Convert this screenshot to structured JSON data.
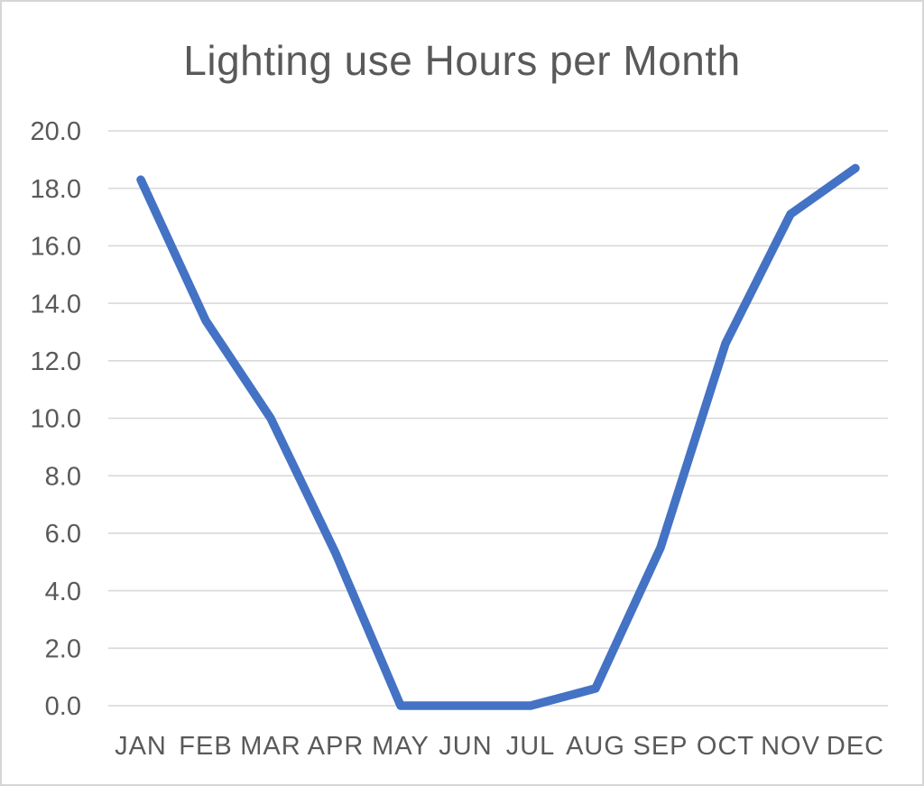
{
  "chart_data": {
    "type": "line",
    "title": "Lighting use Hours per Month",
    "categories": [
      "JAN",
      "FEB",
      "MAR",
      "APR",
      "MAY",
      "JUN",
      "JUL",
      "AUG",
      "SEP",
      "OCT",
      "NOV",
      "DEC"
    ],
    "series": [
      {
        "name": "Lighting use Hours",
        "values": [
          18.3,
          13.4,
          10.0,
          5.3,
          0.0,
          0.0,
          0.0,
          0.6,
          5.5,
          12.6,
          17.1,
          18.7
        ]
      }
    ],
    "xlabel": "",
    "ylabel": "",
    "ylim": [
      0,
      20
    ],
    "y_tick_step": 2,
    "y_tick_labels": [
      "0.0",
      "2.0",
      "4.0",
      "6.0",
      "8.0",
      "10.0",
      "12.0",
      "14.0",
      "16.0",
      "18.0",
      "20.0"
    ],
    "grid": true,
    "legend_position": "none",
    "colors": {
      "line": "#4472C4",
      "gridline": "#D9D9D9",
      "text": "#595959",
      "background": "#FFFFFF",
      "border": "#D6D6D6"
    }
  }
}
